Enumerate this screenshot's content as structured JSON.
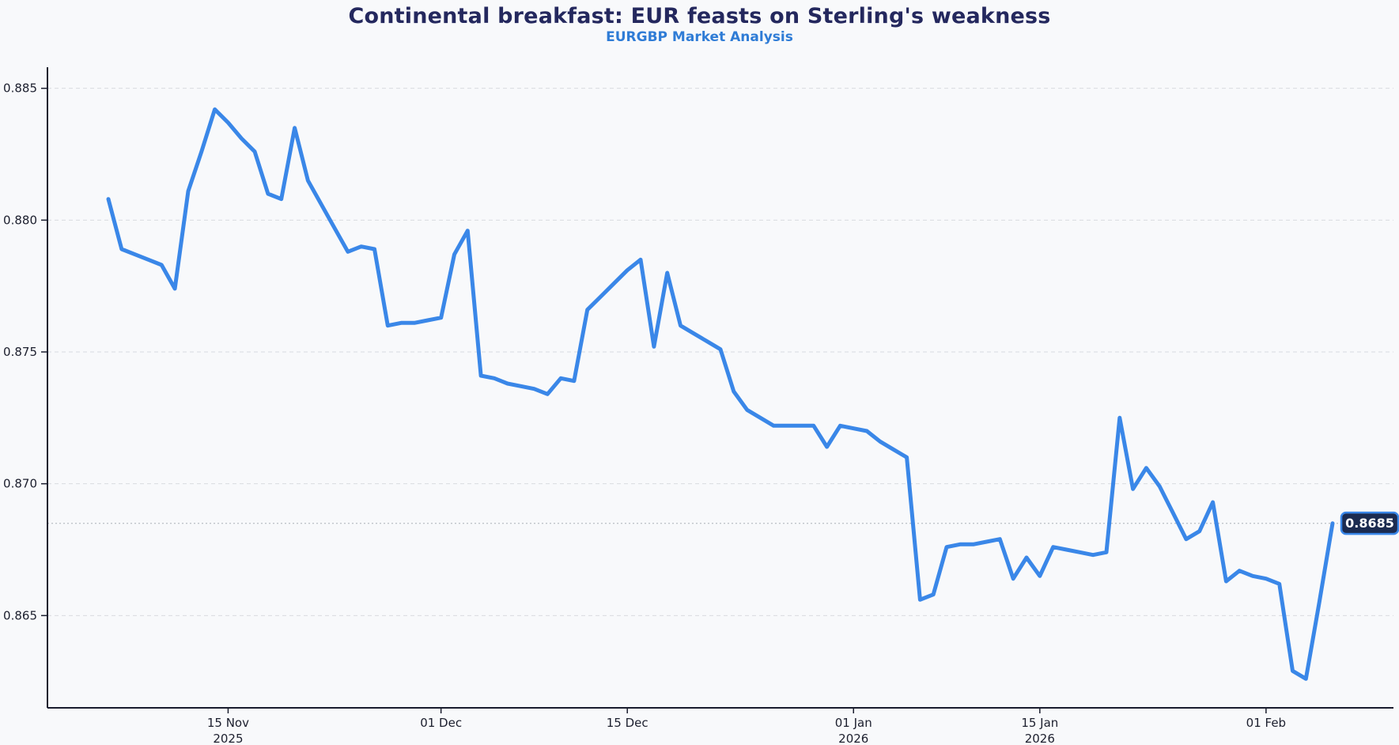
{
  "header": {
    "title": "Continental breakfast: EUR feasts on Sterling's weakness",
    "subtitle": "EURGBP Market Analysis"
  },
  "colors": {
    "line": "#3a87e8",
    "title": "#24285e",
    "subtitle": "#2f7cd6",
    "grid": "#d9dbe0",
    "annotation_line": "#bfc3c9",
    "axis": "#1a1d2e",
    "tick_label": "#1c1f2e",
    "label_box_bg": "#1b2b50",
    "label_box_border": "#3a87e8",
    "label_text": "#ffffff",
    "background": "#f8f9fb"
  },
  "chart_data": {
    "type": "line",
    "title": "Continental breakfast: EUR feasts on Sterling's weakness",
    "subtitle": "EURGBP Market Analysis",
    "legend": "none",
    "grid": "horizontal-dashed",
    "ylim": [
      0.8615,
      0.8858
    ],
    "yticks": [
      "0.885",
      "0.880",
      "0.875",
      "0.870",
      "0.865"
    ],
    "ytick_values": [
      0.885,
      0.88,
      0.875,
      0.87,
      0.865
    ],
    "xticks": [
      {
        "index": 9,
        "line1": "15 Nov",
        "line2": "2025"
      },
      {
        "index": 25,
        "line1": "01 Dec",
        "line2": ""
      },
      {
        "index": 39,
        "line1": "15 Dec",
        "line2": ""
      },
      {
        "index": 56,
        "line1": "01 Jan",
        "line2": "2026"
      },
      {
        "index": 70,
        "line1": "15 Jan",
        "line2": "2026"
      },
      {
        "index": 87,
        "line1": "01 Feb",
        "line2": ""
      }
    ],
    "annotation": {
      "value": 0.8685,
      "label": "0.8685"
    },
    "series": [
      {
        "name": "EURGBP",
        "dates": [
          "2025-11-06",
          "2025-11-07",
          "2025-11-08",
          "2025-11-09",
          "2025-11-10",
          "2025-11-11",
          "2025-11-12",
          "2025-11-13",
          "2025-11-14",
          "2025-11-15",
          "2025-11-16",
          "2025-11-17",
          "2025-11-18",
          "2025-11-19",
          "2025-11-20",
          "2025-11-21",
          "2025-11-22",
          "2025-11-23",
          "2025-11-24",
          "2025-11-25",
          "2025-11-26",
          "2025-11-27",
          "2025-11-28",
          "2025-11-29",
          "2025-11-30",
          "2025-12-01",
          "2025-12-02",
          "2025-12-03",
          "2025-12-04",
          "2025-12-05",
          "2025-12-06",
          "2025-12-07",
          "2025-12-08",
          "2025-12-09",
          "2025-12-10",
          "2025-12-11",
          "2025-12-12",
          "2025-12-13",
          "2025-12-14",
          "2025-12-15",
          "2025-12-16",
          "2025-12-17",
          "2025-12-18",
          "2025-12-19",
          "2025-12-20",
          "2025-12-21",
          "2025-12-22",
          "2025-12-23",
          "2025-12-24",
          "2025-12-25",
          "2025-12-26",
          "2025-12-27",
          "2025-12-28",
          "2025-12-29",
          "2025-12-30",
          "2025-12-31",
          "2026-01-01",
          "2026-01-02",
          "2026-01-03",
          "2026-01-04",
          "2026-01-05",
          "2026-01-06",
          "2026-01-07",
          "2026-01-08",
          "2026-01-09",
          "2026-01-10",
          "2026-01-11",
          "2026-01-12",
          "2026-01-13",
          "2026-01-14",
          "2026-01-15",
          "2026-01-16",
          "2026-01-17",
          "2026-01-18",
          "2026-01-19",
          "2026-01-20",
          "2026-01-21",
          "2026-01-22",
          "2026-01-23",
          "2026-01-24",
          "2026-01-25",
          "2026-01-26",
          "2026-01-27",
          "2026-01-28",
          "2026-01-29",
          "2026-01-30",
          "2026-01-31",
          "2026-02-01",
          "2026-02-02",
          "2026-02-03",
          "2026-02-04",
          "2026-02-05",
          "2026-02-06"
        ],
        "values": [
          0.8808,
          0.8789,
          0.8787,
          0.8785,
          0.8783,
          0.8774,
          0.8811,
          0.8826,
          0.8842,
          0.8837,
          0.8831,
          0.8826,
          0.881,
          0.8808,
          0.8835,
          0.8815,
          0.8806,
          0.8797,
          0.8788,
          0.879,
          0.8789,
          0.876,
          0.8761,
          0.8761,
          0.8762,
          0.8763,
          0.8787,
          0.8796,
          0.8741,
          0.874,
          0.8738,
          0.8737,
          0.8736,
          0.8734,
          0.874,
          0.8739,
          0.8766,
          0.8771,
          0.8776,
          0.8781,
          0.8785,
          0.8752,
          0.878,
          0.876,
          0.8757,
          0.8754,
          0.8751,
          0.8735,
          0.8728,
          0.8725,
          0.8722,
          0.8722,
          0.8722,
          0.8722,
          0.8714,
          0.8722,
          0.8721,
          0.872,
          0.8716,
          0.8713,
          0.871,
          0.8656,
          0.8658,
          0.8676,
          0.8677,
          0.8677,
          0.8678,
          0.8679,
          0.8664,
          0.8672,
          0.8665,
          0.8676,
          0.8675,
          0.8674,
          0.8673,
          0.8674,
          0.8725,
          0.8698,
          0.8706,
          0.8699,
          0.8689,
          0.8679,
          0.8682,
          0.8693,
          0.8663,
          0.8667,
          0.8665,
          0.8664,
          0.8662,
          0.8629,
          0.8626,
          0.8655,
          0.8685
        ]
      }
    ]
  }
}
